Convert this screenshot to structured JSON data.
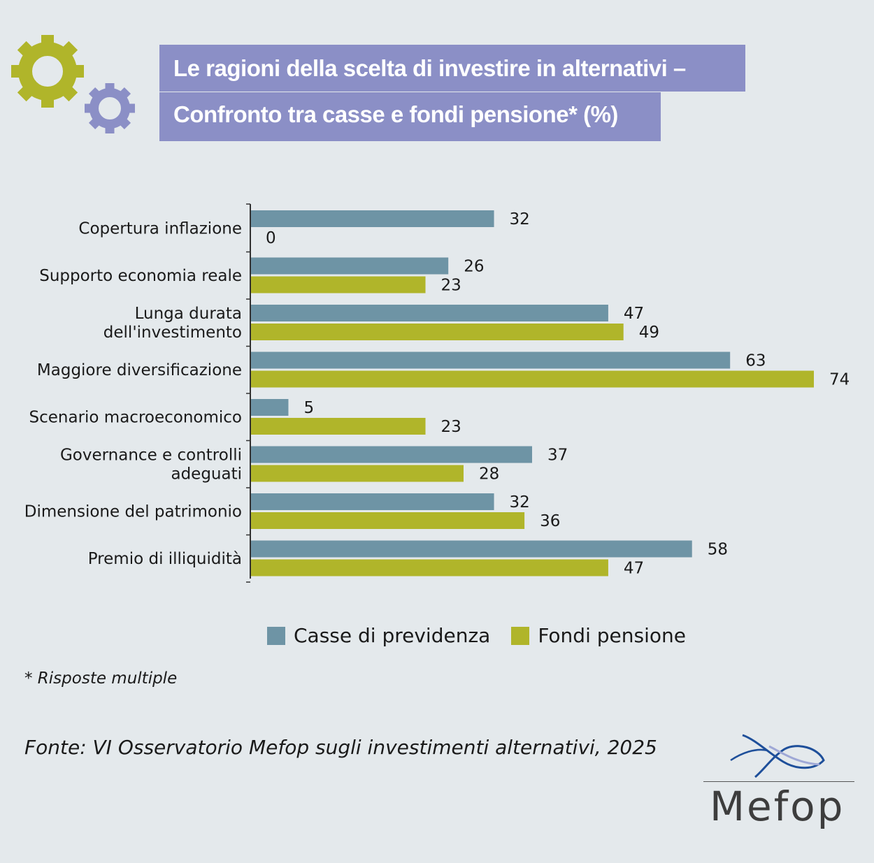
{
  "title_line1": "Le ragioni della scelta di investire in alternativi –",
  "title_line2": "Confronto tra casse e fondi pensione* (%)",
  "colors": {
    "casse": "#6e94a5",
    "fondi": "#b0b52a",
    "gear1": "#b0b52a",
    "gear2": "#8b8fc6",
    "title_bg": "#8b8fc6"
  },
  "chart_data": {
    "type": "bar",
    "orientation": "horizontal",
    "categories": [
      [
        "Copertura inflazione"
      ],
      [
        "Supporto economia reale"
      ],
      [
        "Lunga durata",
        "dell'investimento"
      ],
      [
        "Maggiore diversificazione"
      ],
      [
        "Scenario macroeconomico"
      ],
      [
        "Governance e controlli",
        "adeguati"
      ],
      [
        "Dimensione del patrimonio"
      ],
      [
        "Premio di illiquidità"
      ]
    ],
    "series": [
      {
        "name": "Casse di previdenza",
        "values": [
          32,
          26,
          47,
          63,
          5,
          37,
          32,
          58
        ]
      },
      {
        "name": "Fondi pensione",
        "values": [
          0,
          23,
          49,
          74,
          23,
          28,
          36,
          47
        ]
      }
    ],
    "xlim": [
      0,
      74
    ],
    "grid": false,
    "legend_position": "bottom"
  },
  "legend": {
    "casse": "Casse di previdenza",
    "fondi": "Fondi pensione"
  },
  "note": "* Risposte multiple",
  "source": "Fonte: VI Osservatorio Mefop sugli investimenti alternativi, 2025",
  "logo": "Mefop"
}
